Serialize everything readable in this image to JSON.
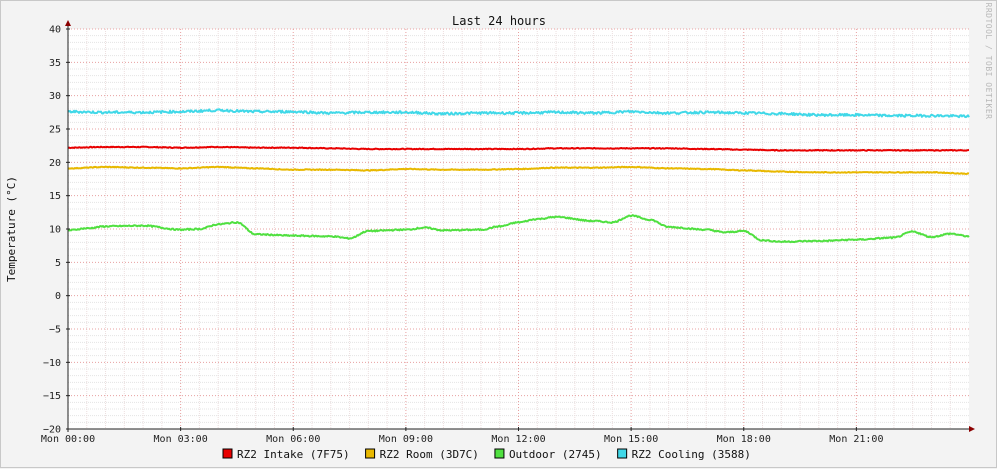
{
  "chart_data": {
    "type": "line",
    "title": "Last 24 hours",
    "ylabel": "Temperature (°C)",
    "xlabel": "",
    "watermark": "RRDTOOL / TOBI OETIKER",
    "ylim": [
      -20,
      40
    ],
    "yticks": [
      40,
      35,
      30,
      25,
      20,
      15,
      10,
      5,
      0,
      -5,
      -10,
      -15,
      -20
    ],
    "xlim": [
      0,
      24
    ],
    "xticks": [
      {
        "value": 0,
        "label": "Mon 00:00"
      },
      {
        "value": 3,
        "label": "Mon 03:00"
      },
      {
        "value": 6,
        "label": "Mon 06:00"
      },
      {
        "value": 9,
        "label": "Mon 09:00"
      },
      {
        "value": 12,
        "label": "Mon 12:00"
      },
      {
        "value": 15,
        "label": "Mon 15:00"
      },
      {
        "value": 18,
        "label": "Mon 18:00"
      },
      {
        "value": 21,
        "label": "Mon 21:00"
      }
    ],
    "grid": true,
    "legend_position": "bottom",
    "series": [
      {
        "name": "RZ2 Intake (7F75)",
        "color": "#e80000",
        "x": [
          0,
          1,
          2,
          3,
          4,
          5,
          6,
          7,
          8,
          9,
          10,
          11,
          12,
          13,
          14,
          15,
          16,
          17,
          18,
          19,
          20,
          21,
          22,
          23,
          24
        ],
        "y": [
          22.2,
          22.3,
          22.3,
          22.2,
          22.3,
          22.2,
          22.2,
          22.1,
          22.0,
          22.0,
          22.0,
          22.0,
          22.0,
          22.1,
          22.1,
          22.1,
          22.1,
          22.0,
          21.9,
          21.8,
          21.8,
          21.8,
          21.8,
          21.8,
          21.8
        ]
      },
      {
        "name": "RZ2 Room (3D7C)",
        "color": "#e8b800",
        "x": [
          0,
          1,
          2,
          3,
          4,
          5,
          6,
          7,
          8,
          9,
          10,
          11,
          12,
          13,
          14,
          15,
          16,
          17,
          18,
          19,
          20,
          21,
          22,
          23,
          24
        ],
        "y": [
          19.1,
          19.3,
          19.2,
          19.1,
          19.3,
          19.1,
          18.9,
          18.9,
          18.8,
          19.0,
          18.9,
          18.9,
          19.0,
          19.2,
          19.2,
          19.3,
          19.1,
          19.0,
          18.8,
          18.6,
          18.5,
          18.5,
          18.5,
          18.5,
          18.3
        ]
      },
      {
        "name": "Outdoor (2745)",
        "color": "#50e040",
        "x": [
          0,
          0.5,
          1,
          2,
          3,
          3.5,
          4,
          4.5,
          5,
          6,
          7,
          7.5,
          8,
          9,
          9.5,
          10,
          11,
          11.5,
          12,
          12.5,
          13,
          14,
          14.5,
          15,
          15.5,
          16,
          17,
          17.5,
          18,
          18.5,
          19,
          20,
          21,
          22,
          22.5,
          23,
          23.5,
          24
        ],
        "y": [
          9.8,
          10.1,
          10.4,
          10.5,
          9.9,
          10.0,
          10.7,
          11.0,
          9.2,
          9.0,
          8.9,
          8.6,
          9.7,
          9.9,
          10.2,
          9.8,
          9.9,
          10.4,
          11.0,
          11.5,
          11.8,
          11.2,
          11.0,
          12.0,
          11.4,
          10.3,
          9.9,
          9.5,
          9.7,
          8.3,
          8.1,
          8.2,
          8.4,
          8.7,
          9.6,
          8.8,
          9.3,
          8.9
        ]
      },
      {
        "name": "RZ2 Cooling (3588)",
        "color": "#40d8e8",
        "x": [
          0,
          1,
          2,
          3,
          4,
          5,
          6,
          7,
          8,
          9,
          10,
          11,
          12,
          13,
          14,
          15,
          16,
          17,
          18,
          19,
          20,
          21,
          22,
          23,
          24
        ],
        "y": [
          27.6,
          27.5,
          27.5,
          27.6,
          27.8,
          27.6,
          27.6,
          27.4,
          27.5,
          27.5,
          27.3,
          27.4,
          27.4,
          27.5,
          27.4,
          27.6,
          27.4,
          27.5,
          27.4,
          27.3,
          27.1,
          27.1,
          27.0,
          27.0,
          26.9
        ]
      }
    ]
  }
}
